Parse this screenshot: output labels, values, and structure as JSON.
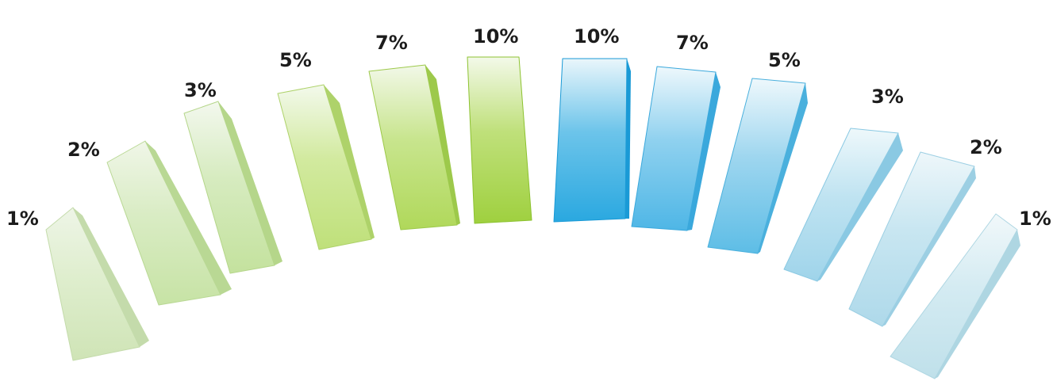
{
  "samples": [
    {
      "label": "1%",
      "colors": {
        "top": "#eef5e7",
        "mid": "#dfeece",
        "deep": "#cfe4b6",
        "shade": "#c4dbab"
      }
    },
    {
      "label": "2%",
      "colors": {
        "top": "#f0f6e8",
        "mid": "#d9ecc4",
        "deep": "#c7e3a5",
        "shade": "#b9d894"
      }
    },
    {
      "label": "3%",
      "colors": {
        "top": "#f3f8ee",
        "mid": "#d6ebbf",
        "deep": "#c4e29e",
        "shade": "#b5d68a"
      }
    },
    {
      "label": "5%",
      "colors": {
        "top": "#f3f9ec",
        "mid": "#d2ea9f",
        "deep": "#bfe07a",
        "shade": "#aed26a"
      }
    },
    {
      "label": "7%",
      "colors": {
        "top": "#f2f8e8",
        "mid": "#c8e58e",
        "deep": "#b0d85a",
        "shade": "#9dc94b"
      }
    },
    {
      "label": "10%",
      "colors": {
        "top": "#f3f9e9",
        "mid": "#bfe07a",
        "deep": "#9fd03f",
        "shade": "#8cc230"
      }
    },
    {
      "label": "10%",
      "colors": {
        "top": "#eaf6fb",
        "mid": "#6cc4ea",
        "deep": "#2aa8e0",
        "shade": "#1a9ad6"
      }
    },
    {
      "label": "7%",
      "colors": {
        "top": "#eef8fc",
        "mid": "#8fd1ef",
        "deep": "#4eb6e6",
        "shade": "#3aa8dc"
      }
    },
    {
      "label": "5%",
      "colors": {
        "top": "#eef8fc",
        "mid": "#9ed6ef",
        "deep": "#5dbde6",
        "shade": "#4ab0dd"
      }
    },
    {
      "label": "3%",
      "colors": {
        "top": "#eef8fb",
        "mid": "#bfe3f1",
        "deep": "#9fd4ea",
        "shade": "#8ac9e3"
      }
    },
    {
      "label": "2%",
      "colors": {
        "top": "#eef7fa",
        "mid": "#c8e6f1",
        "deep": "#aed9ea",
        "shade": "#9ccfe3"
      }
    },
    {
      "label": "1%",
      "colors": {
        "top": "#f1f8fa",
        "mid": "#d4ebf2",
        "deep": "#bfe0ea",
        "shade": "#aed6e2"
      }
    }
  ]
}
